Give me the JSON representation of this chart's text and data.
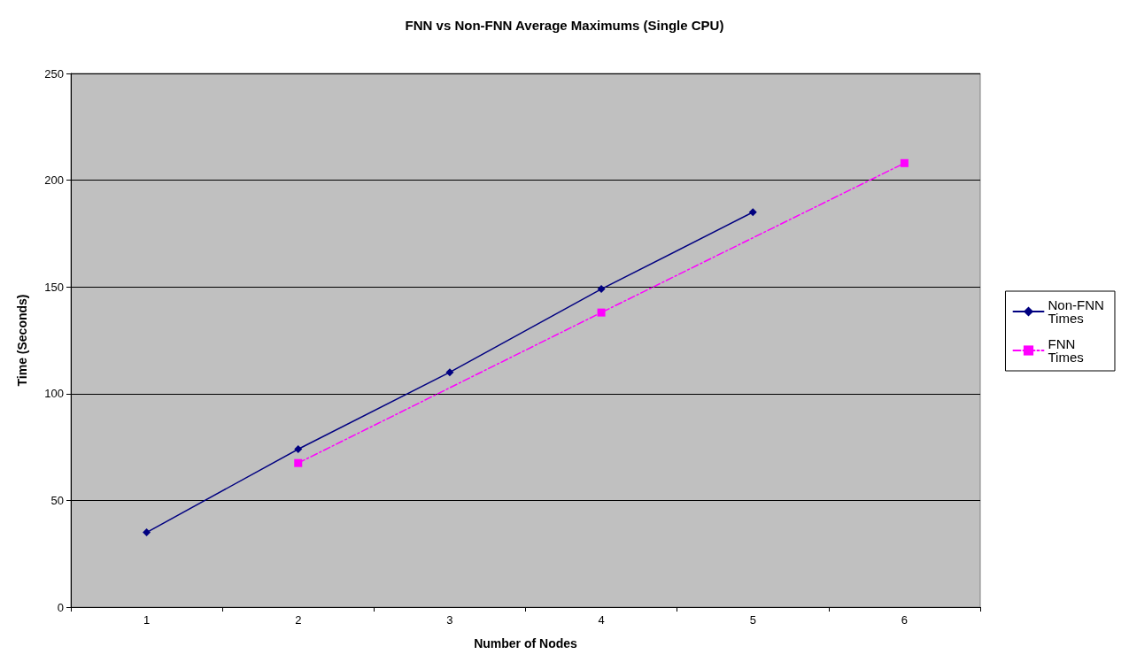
{
  "chart_data": {
    "type": "line",
    "title": "FNN vs Non-FNN Average Maximums (Single CPU)",
    "xlabel": "Number of Nodes",
    "ylabel": "Time (Seconds)",
    "categories": [
      "1",
      "2",
      "3",
      "4",
      "5",
      "6"
    ],
    "series": [
      {
        "name": "Non-FNN Times",
        "color": "#000080",
        "marker": "diamond",
        "line_style": "solid",
        "values": [
          35,
          74,
          110,
          149,
          185,
          null
        ]
      },
      {
        "name": "FNN Times",
        "color": "#ff00ff",
        "marker": "square",
        "line_style": "dashed",
        "values": [
          null,
          67.5,
          null,
          138,
          null,
          208
        ]
      }
    ],
    "ylim": [
      0,
      250
    ],
    "yticks": [
      0,
      50,
      100,
      150,
      200,
      250
    ],
    "grid": "y",
    "legend": "right"
  }
}
